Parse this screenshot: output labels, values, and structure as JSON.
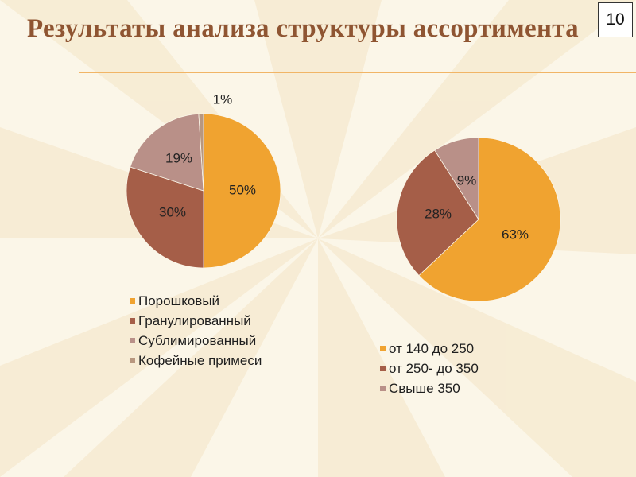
{
  "slide": {
    "title": "Результаты анализа структуры ассортимента",
    "page_number": "10"
  },
  "colors": {
    "orange": "#f0a330",
    "brown": "#a55e48",
    "mauve": "#b99088",
    "tan": "#b8977f",
    "title": "#8f5532",
    "background": "#fbf6e8"
  },
  "chart_data": [
    {
      "type": "pie",
      "categories": [
        "Порошковый",
        "Гранулированный",
        "Сублимированный",
        "Кофейные примеси"
      ],
      "values": [
        50,
        30,
        19,
        1
      ],
      "data_labels": [
        "50%",
        "30%",
        "19%",
        "1%"
      ],
      "colors": [
        "#f0a330",
        "#a55e48",
        "#b99088",
        "#b8977f"
      ],
      "legend_position": "bottom"
    },
    {
      "type": "pie",
      "categories": [
        "от 140 до 250",
        "от 250- до 350",
        "Свыше 350"
      ],
      "values": [
        63,
        28,
        9
      ],
      "data_labels": [
        "63%",
        "28%",
        "9%"
      ],
      "colors": [
        "#f0a330",
        "#a55e48",
        "#b99088"
      ],
      "legend_position": "bottom"
    }
  ]
}
